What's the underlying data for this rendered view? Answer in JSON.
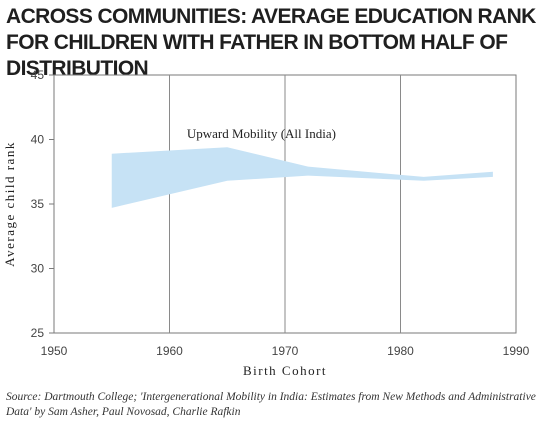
{
  "chart_data": {
    "type": "area",
    "title": "ACROSS COMMUNITIES: AVERAGE EDUCATION RANK FOR CHILDREN WITH FATHER IN BOTTOM HALF OF DISTRIBUTION",
    "xlabel": "Birth Cohort",
    "ylabel": "Average child rank",
    "xlim": [
      1950,
      1990
    ],
    "ylim": [
      25,
      45
    ],
    "xticks": [
      "1950",
      "1960",
      "1970",
      "1980",
      "1990"
    ],
    "yticks": [
      "25",
      "30",
      "35",
      "40",
      "45"
    ],
    "grid": "vertical",
    "series": [
      {
        "name": "Upward Mobility (All India)",
        "color": "#c6e2f5",
        "x": [
          1955,
          1965,
          1972,
          1982,
          1988
        ],
        "upper": [
          38.9,
          39.4,
          37.9,
          37.1,
          37.5
        ],
        "lower": [
          34.7,
          36.8,
          37.2,
          36.8,
          37.1
        ]
      }
    ],
    "annotation": "Upward Mobility (All India)"
  },
  "source": "Source: Dartmouth College; 'Intergenerational Mobility in India: Estimates from New Methods and Administrative Data' by Sam Asher, Paul Novosad, Charlie Rafkin"
}
